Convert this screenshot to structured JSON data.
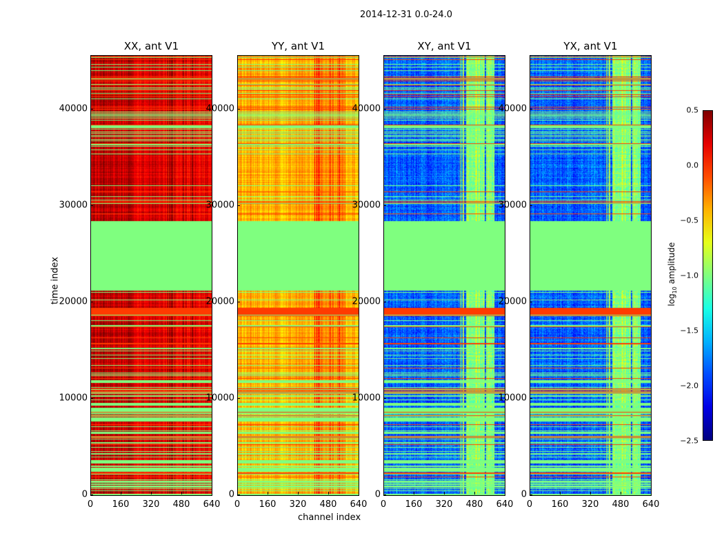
{
  "chart_data": {
    "type": "heatmap",
    "title": "2014-12-31 0.0-24.0",
    "xlabel": "channel index",
    "ylabel": "time index",
    "xlim": [
      0,
      640
    ],
    "ylim": [
      0,
      45600
    ],
    "xticks": [
      "0",
      "160",
      "320",
      "480",
      "640"
    ],
    "yticks": [
      "0",
      "10000",
      "20000",
      "30000",
      "40000"
    ],
    "panels": [
      {
        "title": "XX, ant V1",
        "base": 0.2,
        "hot_channels": [
          400,
          570
        ],
        "hot_value": 0.25
      },
      {
        "title": "YY, ant V1",
        "base": -0.4,
        "hot_channels": [
          400,
          570
        ],
        "hot_value": -0.2
      },
      {
        "title": "XY, ant V1",
        "base": -1.85,
        "hot_channels": [
          400,
          580
        ],
        "hot_value": -0.9
      },
      {
        "title": "YX, ant V1",
        "base": -1.85,
        "hot_channels": [
          400,
          580
        ],
        "hot_value": -0.9
      }
    ],
    "flagged_time_ranges": [
      [
        21200,
        28400
      ]
    ],
    "flag_value": -1.0,
    "red_band_time_range": [
      18700,
      19400
    ],
    "colorbar": {
      "label": "log10 amplitude",
      "range": [
        -2.5,
        0.5
      ],
      "ticks": [
        "0.5",
        "0.0",
        "−0.5",
        "−1.0",
        "−1.5",
        "−2.0",
        "−2.5"
      ],
      "colormap": "jet"
    }
  }
}
